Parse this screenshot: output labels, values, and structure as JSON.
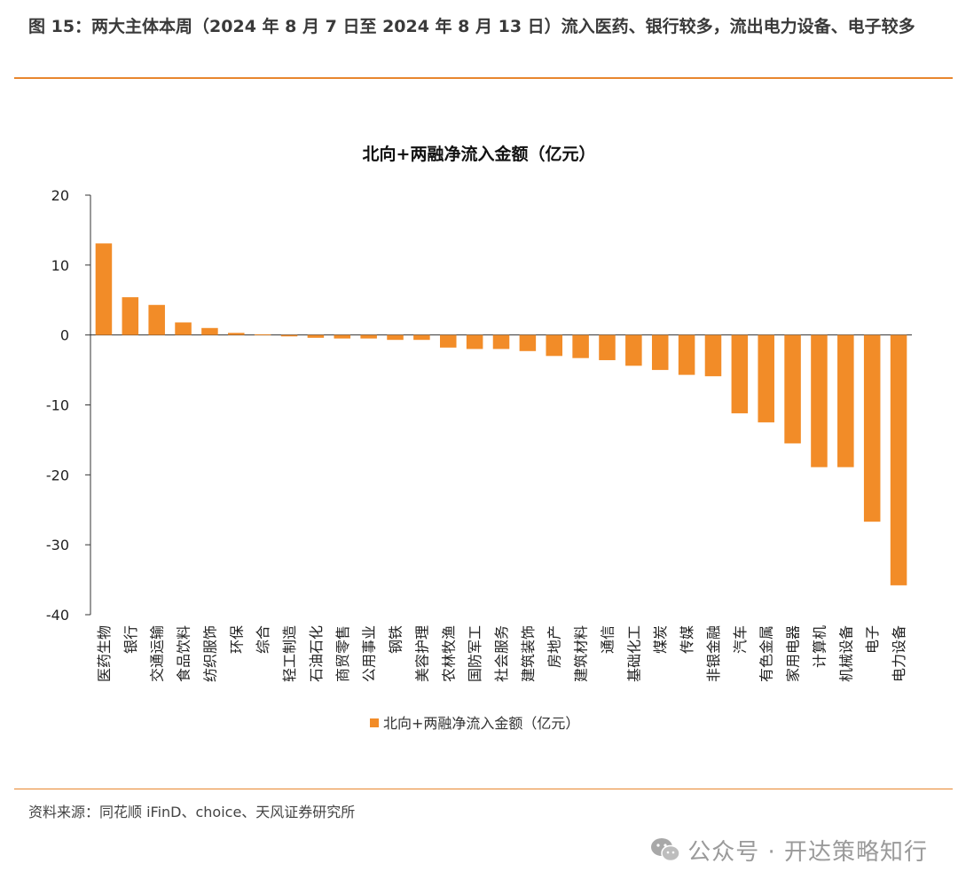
{
  "header": {
    "title": "图 15：两大主体本周（2024 年 8 月 7 日至 2024 年 8 月 13 日）流入医药、银行较多，流出电力设备、电子较多"
  },
  "colors": {
    "accent": "#e8872e",
    "bar": "#f28c28",
    "axis": "#333333"
  },
  "chart_data": {
    "type": "bar",
    "title": "北向+两融净流入金额（亿元）",
    "xlabel": "",
    "ylabel": "",
    "ylim": [
      -40,
      20
    ],
    "yticks": [
      20,
      10,
      0,
      -10,
      -20,
      -30,
      -40
    ],
    "grid": false,
    "legend_position": "bottom-center",
    "categories": [
      "医药生物",
      "银行",
      "交通运输",
      "食品饮料",
      "纺织服饰",
      "环保",
      "综合",
      "轻工制造",
      "石油石化",
      "商贸零售",
      "公用事业",
      "钢铁",
      "美容护理",
      "农林牧渔",
      "国防军工",
      "社会服务",
      "建筑装饰",
      "房地产",
      "建筑材料",
      "通信",
      "基础化工",
      "煤炭",
      "传媒",
      "非银金融",
      "汽车",
      "有色金属",
      "家用电器",
      "计算机",
      "机械设备",
      "电子",
      "电力设备"
    ],
    "series": [
      {
        "name": "北向+两融净流入金额（亿元）",
        "values": [
          13.1,
          5.4,
          4.3,
          1.8,
          1.0,
          0.3,
          0.1,
          -0.2,
          -0.4,
          -0.5,
          -0.5,
          -0.7,
          -0.7,
          -1.8,
          -2.0,
          -2.0,
          -2.3,
          -3.0,
          -3.3,
          -3.6,
          -4.4,
          -5.0,
          -5.7,
          -5.9,
          -11.2,
          -12.5,
          -15.5,
          -18.9,
          -18.9,
          -26.7,
          -35.8
        ]
      }
    ]
  },
  "footer": {
    "source": "资料来源：同花顺 iFinD、choice、天风证券研究所",
    "watermark": "公众号 · 开达策略知行",
    "watermark_icon": "wechat-icon"
  }
}
